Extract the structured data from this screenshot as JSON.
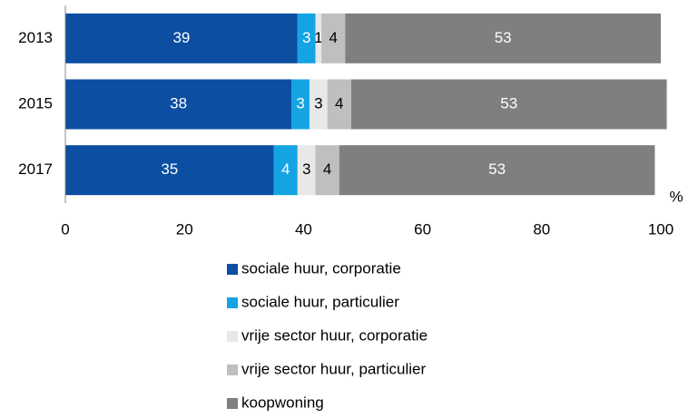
{
  "chart_data": {
    "type": "stacked-barh",
    "categories": [
      "2013",
      "2015",
      "2017"
    ],
    "series": [
      {
        "name": "sociale huur, corporatie",
        "color": "#0b4ea2",
        "label_color": "#ffffff",
        "values": [
          39,
          38,
          35
        ]
      },
      {
        "name": "sociale huur, particulier",
        "color": "#14a4e4",
        "label_color": "#ffffff",
        "values": [
          3,
          3,
          4
        ]
      },
      {
        "name": "vrije sector huur, corporatie",
        "color": "#e8e8e8",
        "label_color": "#000000",
        "values": [
          1,
          3,
          3
        ]
      },
      {
        "name": "vrije sector huur, particulier",
        "color": "#bfbfbf",
        "label_color": "#000000",
        "values": [
          4,
          4,
          4
        ]
      },
      {
        "name": "koopwoning",
        "color": "#7f7f7f",
        "label_color": "#ffffff",
        "values": [
          53,
          53,
          53
        ]
      }
    ],
    "xlabel": "%",
    "xlim": [
      0,
      100
    ],
    "xticks": [
      0,
      20,
      40,
      60,
      80,
      100
    ],
    "legend": "bottom"
  }
}
